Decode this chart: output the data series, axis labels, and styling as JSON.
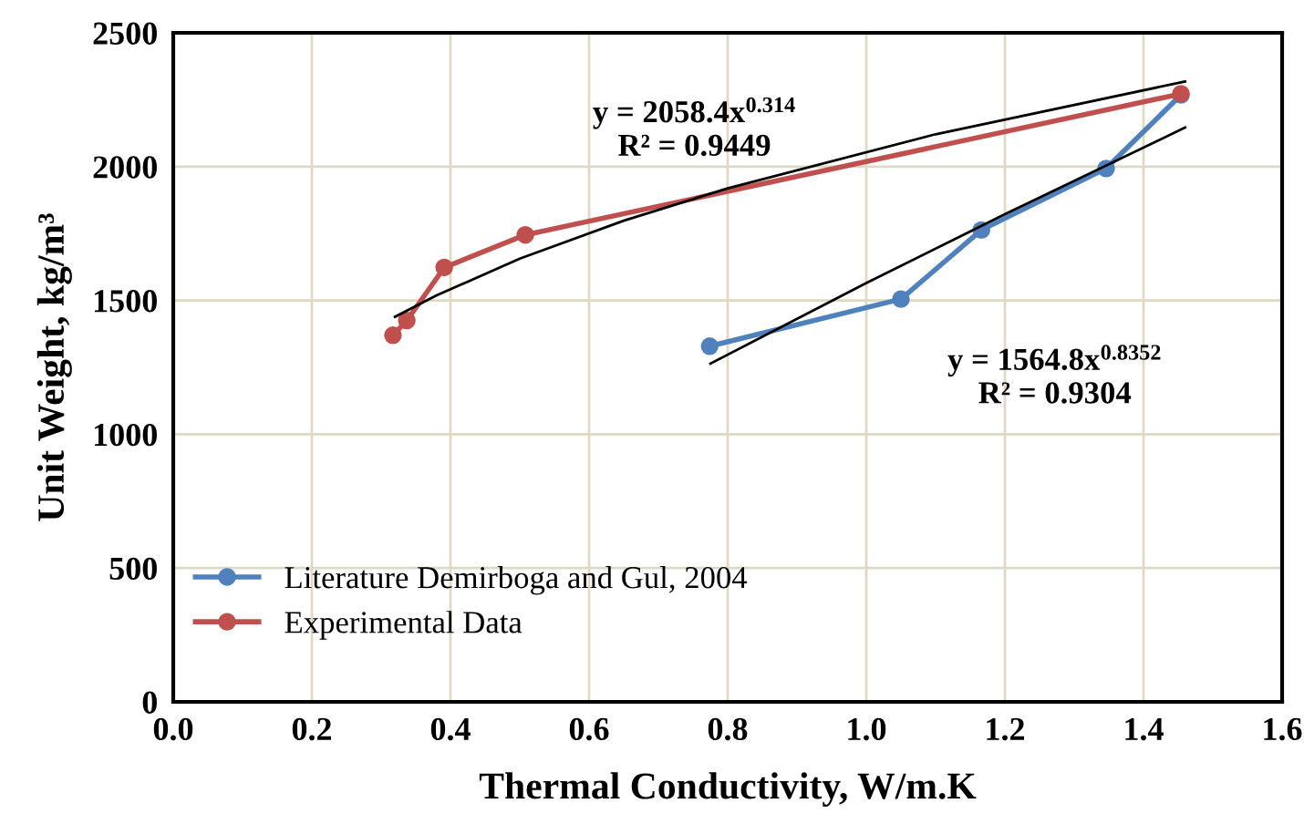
{
  "chart_data": {
    "type": "line",
    "xlabel": "Thermal Conductivity, W/m.K",
    "ylabel": "Unit Weight, kg/m³",
    "xlim": [
      0,
      1.6
    ],
    "xticks": [
      {
        "value": 0,
        "label": "0.0"
      },
      0.2,
      0.4,
      0.6,
      0.8,
      {
        "value": 1,
        "label": "1.0"
      },
      1.2,
      1.4,
      1.6
    ],
    "ylim": [
      0,
      2500
    ],
    "yticks": [
      0,
      500,
      1000,
      1500,
      2000,
      2500
    ],
    "grid": true,
    "legend": "bottom left",
    "marker": "circle",
    "series": [
      {
        "name": "Literature Demirboga and Gul, 2004",
        "color": "#4f81bd",
        "x": [
          0.774,
          1.05,
          1.166,
          1.346,
          1.454
        ],
        "values": [
          1329,
          1505,
          1763,
          1993,
          2268
        ]
      },
      {
        "name": "Experimental Data",
        "color": "#c0504d",
        "x": [
          0.317,
          0.337,
          0.391,
          0.508,
          1.454
        ],
        "values": [
          1370,
          1425,
          1623,
          1745,
          2272
        ]
      },
      {
        "type": "line",
        "color": "#000000",
        "marker": "none",
        "x": [
          0.32,
          0.38,
          0.5,
          0.65,
          0.8,
          1.1,
          1.46
        ],
        "values": [
          1439,
          1519,
          1656,
          1798,
          1919,
          2121,
          2318
        ]
      },
      {
        "type": "line",
        "color": "#000000",
        "marker": "none",
        "x": [
          0.775,
          1.0,
          1.2,
          1.46
        ],
        "values": [
          1264,
          1565,
          1822,
          2146
        ]
      }
    ],
    "annotations": [
      "y = 2058.4x$^{0.314}$\nR² = 0.9449",
      "y = 1564.8x$^{0.8352}$\nR² = 0.9304"
    ]
  }
}
